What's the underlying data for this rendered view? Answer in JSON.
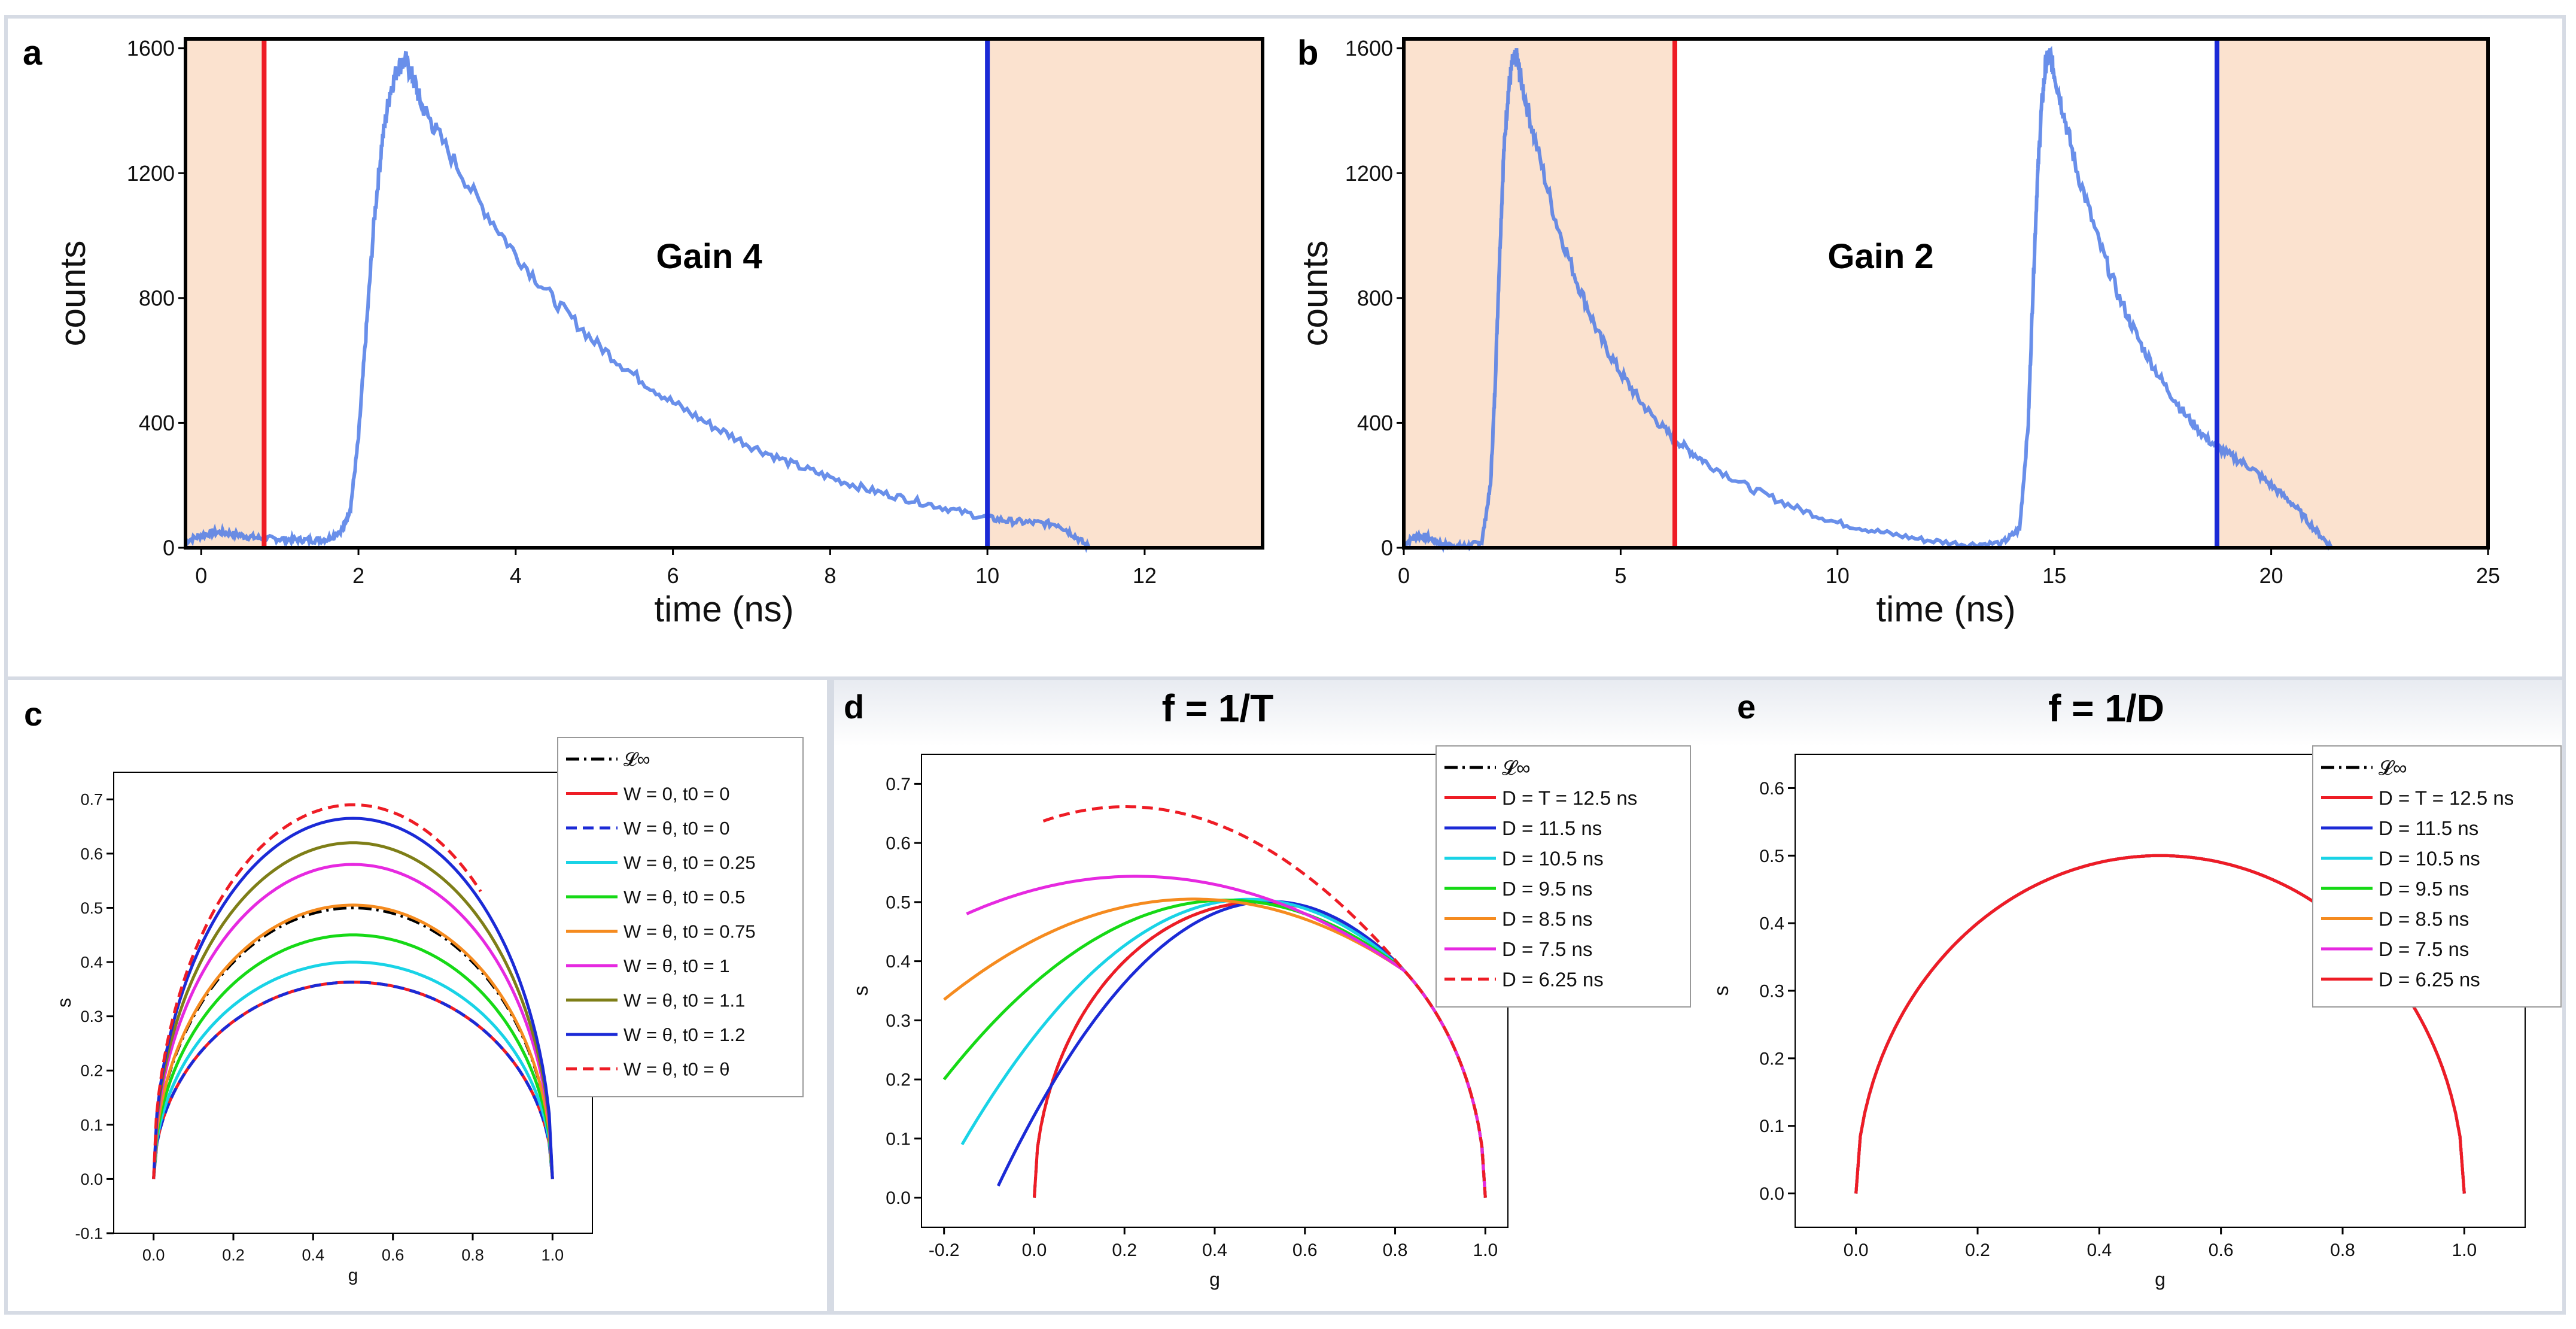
{
  "panels": {
    "a": {
      "letter": "a",
      "annotation": "Gain 4"
    },
    "b": {
      "letter": "b",
      "annotation": "Gain 2"
    },
    "c": {
      "letter": "c"
    },
    "d": {
      "letter": "d",
      "title": "f = 1/T"
    },
    "e": {
      "letter": "e",
      "title": "f = 1/D"
    }
  },
  "colors": {
    "decay_trace": "#4f7be6",
    "excluded_region": "#fbe2cf",
    "gate_start": "#ee1c25",
    "gate_end": "#1b2ad6",
    "frame": "#d6dbe4"
  },
  "chart_data": [
    {
      "id": "a",
      "type": "line",
      "xlabel": "time (ns)",
      "ylabel": "counts",
      "xlim": [
        -0.2,
        13.5
      ],
      "ylim": [
        0,
        1630
      ],
      "xticks": [
        "0",
        "2",
        "4",
        "6",
        "8",
        "10",
        "12"
      ],
      "yticks": [
        "0",
        "400",
        "800",
        "1200",
        "1600"
      ],
      "shaded_ranges": [
        [
          -0.2,
          0.8
        ],
        [
          10,
          13.5
        ]
      ],
      "vlines": [
        {
          "x": 0.8,
          "color": "#ee1c25"
        },
        {
          "x": 10.0,
          "color": "#1b2ad6"
        }
      ],
      "series": [
        {
          "x": [
            -0.2,
            0.0,
            0.2,
            0.4,
            0.6,
            0.8,
            1.0,
            1.2,
            1.4,
            1.6,
            1.8,
            1.9,
            2.0,
            2.1,
            2.2,
            2.3,
            2.4,
            2.5,
            2.6,
            2.7,
            2.8,
            3.0,
            3.5,
            4.0,
            4.5,
            5.0,
            5.5,
            6.0,
            6.5,
            7.0,
            7.5,
            8.0,
            8.5,
            9.0,
            9.5,
            10.0,
            10.3,
            10.6,
            10.9,
            11.1,
            11.3
          ],
          "y": [
            20,
            40,
            50,
            45,
            35,
            30,
            28,
            26,
            24,
            27,
            60,
            130,
            350,
            700,
            1050,
            1300,
            1460,
            1540,
            1560,
            1500,
            1420,
            1330,
            1120,
            940,
            790,
            660,
            555,
            465,
            390,
            325,
            270,
            225,
            185,
            155,
            125,
            95,
            85,
            80,
            75,
            40,
            0
          ]
        }
      ]
    },
    {
      "id": "b",
      "type": "line",
      "xlabel": "time (ns)",
      "ylabel": "counts",
      "xlim": [
        0,
        25
      ],
      "ylim": [
        0,
        1630
      ],
      "xticks": [
        "0",
        "5",
        "10",
        "15",
        "20",
        "25"
      ],
      "yticks": [
        "0",
        "400",
        "800",
        "1200",
        "1600"
      ],
      "shaded_ranges": [
        [
          0,
          6.25
        ],
        [
          18.75,
          25
        ]
      ],
      "vlines": [
        {
          "x": 6.25,
          "color": "#ee1c25"
        },
        {
          "x": 18.75,
          "color": "#1b2ad6"
        }
      ],
      "series": [
        {
          "x": [
            0.0,
            0.3,
            0.6,
            0.9,
            1.2,
            1.5,
            1.8,
            2.0,
            2.1,
            2.2,
            2.3,
            2.4,
            2.5,
            2.6,
            2.7,
            3.0,
            3.5,
            4.0,
            4.5,
            5.0,
            5.5,
            6.0,
            6.5,
            7.0,
            8.0,
            9.0,
            10.0,
            11.0,
            12.0,
            13.0,
            13.8,
            14.2,
            14.4,
            14.5,
            14.6,
            14.7,
            14.8,
            14.9,
            15.0,
            15.2,
            15.5,
            16.0,
            16.5,
            17.0,
            17.5,
            18.0,
            18.5,
            19.0,
            19.5,
            20.0,
            20.5,
            21.0,
            21.4
          ],
          "y": [
            10,
            40,
            30,
            10,
            5,
            5,
            20,
            200,
            500,
            900,
            1250,
            1450,
            1550,
            1570,
            1500,
            1320,
            1050,
            850,
            680,
            560,
            460,
            380,
            320,
            270,
            190,
            130,
            80,
            50,
            25,
            10,
            15,
            60,
            400,
            800,
            1150,
            1400,
            1550,
            1580,
            1520,
            1400,
            1220,
            990,
            800,
            650,
            530,
            430,
            350,
            300,
            260,
            200,
            140,
            60,
            0
          ]
        }
      ]
    },
    {
      "id": "c",
      "type": "line",
      "xlabel": "g",
      "ylabel": "s",
      "xlim": [
        -0.1,
        1.1
      ],
      "ylim": [
        -0.1,
        0.75
      ],
      "xticks": [
        "0.0",
        "0.2",
        "0.4",
        "0.6",
        "0.8",
        "1.0"
      ],
      "yticks": [
        "-0.1",
        "0.0",
        "0.1",
        "0.2",
        "0.3",
        "0.4",
        "0.5",
        "0.6",
        "0.7"
      ],
      "legend_position": "top-right",
      "series": [
        {
          "name": "𝓛∞",
          "color": "#000000",
          "dash": "dashdot",
          "cx": 0.5,
          "rx": 0.5,
          "ry": 0.5,
          "g_end": 1.0
        },
        {
          "name": "W = 0, t0 = 0",
          "color": "#ee1c25",
          "dash": "solid",
          "cx": 0.5,
          "rx": 0.5,
          "ry": 0.363,
          "g_end": 1.0
        },
        {
          "name": "W = θ, t0 = 0",
          "color": "#1b2ad6",
          "dash": "dashed",
          "cx": 0.5,
          "rx": 0.5,
          "ry": 0.363,
          "g_end": 1.0
        },
        {
          "name": "W = θ, t0 = 0.25",
          "color": "#19d3e6",
          "dash": "solid",
          "cx": 0.5,
          "rx": 0.5,
          "ry": 0.4,
          "g_end": 1.0
        },
        {
          "name": "W = θ, t0 = 0.5",
          "color": "#16d916",
          "dash": "solid",
          "cx": 0.5,
          "rx": 0.5,
          "ry": 0.45,
          "g_end": 1.0
        },
        {
          "name": "W = θ, t0 = 0.75",
          "color": "#f58b1f",
          "dash": "solid",
          "cx": 0.5,
          "rx": 0.5,
          "ry": 0.505,
          "g_end": 1.0
        },
        {
          "name": "W = θ, t0 = 1",
          "color": "#e629e0",
          "dash": "solid",
          "cx": 0.5,
          "rx": 0.5,
          "ry": 0.58,
          "g_end": 1.0
        },
        {
          "name": "W = θ, t0 = 1.1",
          "color": "#7e7e17",
          "dash": "solid",
          "cx": 0.5,
          "rx": 0.5,
          "ry": 0.62,
          "g_end": 1.0
        },
        {
          "name": "W = θ, t0 = 1.2",
          "color": "#1b2ad6",
          "dash": "solid",
          "cx": 0.5,
          "rx": 0.5,
          "ry": 0.665,
          "g_end": 1.0
        },
        {
          "name": "W = θ, t0 = θ",
          "color": "#ee1c25",
          "dash": "dashed",
          "cx": 0.5,
          "rx": 0.5,
          "ry": 0.69,
          "g_end": 0.82
        }
      ]
    },
    {
      "id": "d",
      "type": "line",
      "xlabel": "g",
      "ylabel": "s",
      "xlim": [
        -0.25,
        1.05
      ],
      "ylim": [
        -0.05,
        0.75
      ],
      "xticks": [
        "-0.2",
        "0.0",
        "0.2",
        "0.4",
        "0.6",
        "0.8",
        "1.0"
      ],
      "yticks": [
        "0.0",
        "0.1",
        "0.2",
        "0.3",
        "0.4",
        "0.5",
        "0.6",
        "0.7"
      ],
      "legend_position": "top-right",
      "series": [
        {
          "name": "𝓛∞",
          "color": "#000000",
          "dash": "dashdot",
          "g_start": 0.0
        },
        {
          "name": "D = T = 12.5 ns",
          "color": "#ee1c25",
          "dash": "solid",
          "g_start": 0.0
        },
        {
          "name": "D = 11.5 ns",
          "color": "#1b2ad6",
          "dash": "solid",
          "g_start": -0.08
        },
        {
          "name": "D = 10.5 ns",
          "color": "#19d3e6",
          "dash": "solid",
          "g_start": -0.16
        },
        {
          "name": "D = 9.5 ns",
          "color": "#16d916",
          "dash": "solid",
          "g_start": -0.2
        },
        {
          "name": "D = 8.5 ns",
          "color": "#f58b1f",
          "dash": "solid",
          "g_start": -0.2
        },
        {
          "name": "D = 7.5 ns",
          "color": "#e629e0",
          "dash": "solid",
          "g_start": -0.15
        },
        {
          "name": "D = 6.25 ns",
          "color": "#ee1c25",
          "dash": "dashed",
          "g_start": 0.02
        }
      ]
    },
    {
      "id": "e",
      "type": "line",
      "xlabel": "g",
      "ylabel": "s",
      "xlim": [
        -0.1,
        1.1
      ],
      "ylim": [
        -0.05,
        0.65
      ],
      "xticks": [
        "0.0",
        "0.2",
        "0.4",
        "0.6",
        "0.8",
        "1.0"
      ],
      "yticks": [
        "0.0",
        "0.1",
        "0.2",
        "0.3",
        "0.4",
        "0.5",
        "0.6"
      ],
      "legend_position": "top-right",
      "series": [
        {
          "name": "𝓛∞",
          "color": "#000000",
          "dash": "dashdot"
        },
        {
          "name": "D = T = 12.5 ns",
          "color": "#ee1c25",
          "dash": "solid"
        },
        {
          "name": "D = 11.5 ns",
          "color": "#1b2ad6",
          "dash": "solid"
        },
        {
          "name": "D = 10.5 ns",
          "color": "#19d3e6",
          "dash": "solid"
        },
        {
          "name": "D = 9.5 ns",
          "color": "#16d916",
          "dash": "solid"
        },
        {
          "name": "D = 8.5 ns",
          "color": "#f58b1f",
          "dash": "solid"
        },
        {
          "name": "D = 7.5 ns",
          "color": "#e629e0",
          "dash": "solid"
        },
        {
          "name": "D = 6.25 ns",
          "color": "#ee1c25",
          "dash": "solid"
        }
      ]
    }
  ]
}
